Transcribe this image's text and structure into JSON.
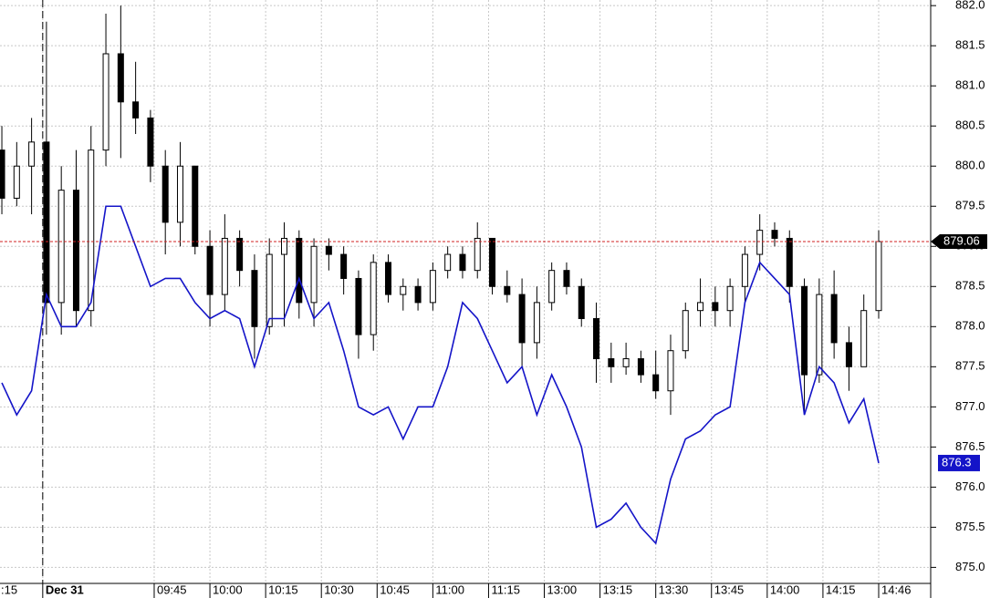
{
  "chart_data": {
    "type": "candlestick",
    "x": [
      -11,
      -7,
      -3,
      1,
      5,
      9,
      13,
      17,
      21,
      25,
      29,
      33,
      37,
      41,
      45,
      49,
      53,
      57,
      61,
      65,
      69,
      73,
      77,
      81,
      85,
      89,
      93,
      97,
      101,
      105,
      109,
      113,
      117,
      121,
      125,
      129,
      133,
      137,
      141,
      145,
      149,
      153,
      157,
      161,
      165,
      169,
      173,
      177,
      181,
      185,
      189,
      193,
      197,
      201,
      205,
      209,
      213,
      217,
      221,
      225
    ],
    "xlim": [
      -11.5,
      239
    ],
    "xticks": [
      {
        "value": -15,
        "label": ":15"
      },
      {
        "value": 0,
        "label": "Dec 31"
      },
      {
        "value": 30,
        "label": "09:45"
      },
      {
        "value": 45,
        "label": "10:00"
      },
      {
        "value": 60,
        "label": "10:15"
      },
      {
        "value": 75,
        "label": "10:30"
      },
      {
        "value": 90,
        "label": "10:45"
      },
      {
        "value": 105,
        "label": "11:00"
      },
      {
        "value": 120,
        "label": "11:15"
      },
      {
        "value": 135,
        "label": "13:00"
      },
      {
        "value": 150,
        "label": "13:15"
      },
      {
        "value": 165,
        "label": "13:30"
      },
      {
        "value": 180,
        "label": "13:45"
      },
      {
        "value": 195,
        "label": "14:00"
      },
      {
        "value": 210,
        "label": "14:15"
      },
      {
        "value": 225,
        "label": "14:46"
      }
    ],
    "ylim": [
      874.8,
      882.07
    ],
    "yticks": [
      {
        "value": 875,
        "label": "875.0"
      },
      {
        "value": 875.5,
        "label": "875.5"
      },
      {
        "value": 876,
        "label": "876.0"
      },
      {
        "value": 876.5,
        "label": "876.5"
      },
      {
        "value": 877,
        "label": "877.0"
      },
      {
        "value": 877.5,
        "label": "877.5"
      },
      {
        "value": 878,
        "label": "878.0"
      },
      {
        "value": 878.5,
        "label": "878.5"
      },
      {
        "value": 879,
        "label": "879.0"
      },
      {
        "value": 879.5,
        "label": "879.5"
      },
      {
        "value": 880,
        "label": "880.0"
      },
      {
        "value": 880.5,
        "label": "880.5"
      },
      {
        "value": 881,
        "label": "881.0"
      },
      {
        "value": 881.5,
        "label": "881.5"
      },
      {
        "value": 882,
        "label": "882.0"
      }
    ],
    "grid": true,
    "series": [
      {
        "type": "candlestick",
        "color": "#000000",
        "values": [
          [
            880.2,
            880.5,
            879.4,
            879.6
          ],
          [
            879.6,
            880.3,
            879.5,
            880.0
          ],
          [
            880.0,
            880.6,
            879.4,
            880.3
          ],
          [
            880.3,
            881.8,
            877.9,
            878.3
          ],
          [
            878.3,
            880.0,
            877.9,
            879.7
          ],
          [
            879.7,
            880.2,
            878.0,
            878.2
          ],
          [
            878.2,
            880.5,
            878.0,
            880.2
          ],
          [
            880.2,
            881.9,
            880.0,
            881.4
          ],
          [
            881.4,
            882.0,
            880.1,
            880.8
          ],
          [
            880.8,
            881.3,
            880.4,
            880.6
          ],
          [
            880.6,
            880.7,
            879.8,
            880.0
          ],
          [
            880.0,
            880.2,
            878.9,
            879.3
          ],
          [
            879.3,
            880.3,
            879.0,
            880.0
          ],
          [
            880.0,
            880.0,
            878.9,
            879.0
          ],
          [
            879.0,
            879.2,
            878.0,
            878.4
          ],
          [
            878.4,
            879.4,
            878.2,
            879.1
          ],
          [
            879.1,
            879.2,
            878.5,
            878.7
          ],
          [
            878.7,
            878.9,
            877.6,
            878.0
          ],
          [
            878.0,
            879.1,
            877.9,
            878.9
          ],
          [
            878.9,
            879.3,
            878.0,
            879.1
          ],
          [
            879.1,
            879.2,
            878.1,
            878.3
          ],
          [
            878.3,
            879.1,
            878.0,
            879.0
          ],
          [
            879.0,
            879.1,
            878.7,
            878.9
          ],
          [
            878.9,
            879.0,
            878.4,
            878.6
          ],
          [
            878.6,
            878.7,
            877.6,
            877.9
          ],
          [
            877.9,
            878.9,
            877.7,
            878.8
          ],
          [
            878.8,
            878.9,
            878.3,
            878.4
          ],
          [
            878.4,
            878.6,
            878.2,
            878.5
          ],
          [
            878.5,
            878.6,
            878.2,
            878.3
          ],
          [
            878.3,
            878.8,
            878.2,
            878.7
          ],
          [
            878.7,
            879.0,
            878.6,
            878.9
          ],
          [
            878.9,
            879.0,
            878.6,
            878.7
          ],
          [
            878.7,
            879.3,
            878.6,
            879.1
          ],
          [
            879.1,
            879.1,
            878.4,
            878.5
          ],
          [
            878.5,
            878.7,
            878.3,
            878.4
          ],
          [
            878.4,
            878.6,
            877.5,
            877.8
          ],
          [
            877.8,
            878.5,
            877.6,
            878.3
          ],
          [
            878.3,
            878.8,
            878.2,
            878.7
          ],
          [
            878.7,
            878.8,
            878.4,
            878.5
          ],
          [
            878.5,
            878.6,
            878.0,
            878.1
          ],
          [
            878.1,
            878.3,
            877.3,
            877.6
          ],
          [
            877.6,
            877.8,
            877.3,
            877.5
          ],
          [
            877.5,
            877.8,
            877.4,
            877.6
          ],
          [
            877.6,
            877.7,
            877.3,
            877.4
          ],
          [
            877.4,
            877.7,
            877.1,
            877.2
          ],
          [
            877.2,
            877.9,
            876.9,
            877.7
          ],
          [
            877.7,
            878.3,
            877.6,
            878.2
          ],
          [
            878.2,
            878.6,
            878.0,
            878.3
          ],
          [
            878.3,
            878.5,
            878.0,
            878.2
          ],
          [
            878.2,
            878.6,
            878.0,
            878.5
          ],
          [
            878.5,
            879.0,
            878.3,
            878.9
          ],
          [
            878.9,
            879.4,
            878.7,
            879.2
          ],
          [
            879.2,
            879.3,
            879.0,
            879.1
          ],
          [
            879.1,
            879.2,
            878.3,
            878.5
          ],
          [
            878.5,
            878.6,
            876.9,
            877.4
          ],
          [
            877.4,
            878.6,
            877.3,
            878.4
          ],
          [
            878.4,
            878.7,
            877.6,
            877.8
          ],
          [
            877.8,
            878.0,
            877.2,
            877.5
          ],
          [
            877.5,
            878.4,
            877.5,
            878.2
          ],
          [
            878.2,
            879.2,
            878.1,
            879.06
          ]
        ]
      },
      {
        "type": "line",
        "color": "#1414c8",
        "values": [
          877.3,
          876.9,
          877.2,
          878.4,
          878.0,
          878.0,
          878.3,
          879.5,
          879.5,
          879.0,
          878.5,
          878.6,
          878.6,
          878.3,
          878.1,
          878.2,
          878.1,
          877.5,
          878.1,
          878.1,
          878.6,
          878.1,
          878.3,
          877.7,
          877.0,
          876.9,
          877.0,
          876.6,
          877.0,
          877.0,
          877.5,
          878.3,
          878.1,
          877.7,
          877.3,
          877.5,
          876.9,
          877.4,
          877.0,
          876.5,
          875.5,
          875.6,
          875.8,
          875.5,
          875.3,
          876.1,
          876.6,
          876.7,
          876.9,
          877.0,
          878.3,
          878.8,
          878.6,
          878.4,
          876.9,
          877.5,
          877.3,
          876.8,
          877.1,
          876.3
        ]
      }
    ]
  }
}
